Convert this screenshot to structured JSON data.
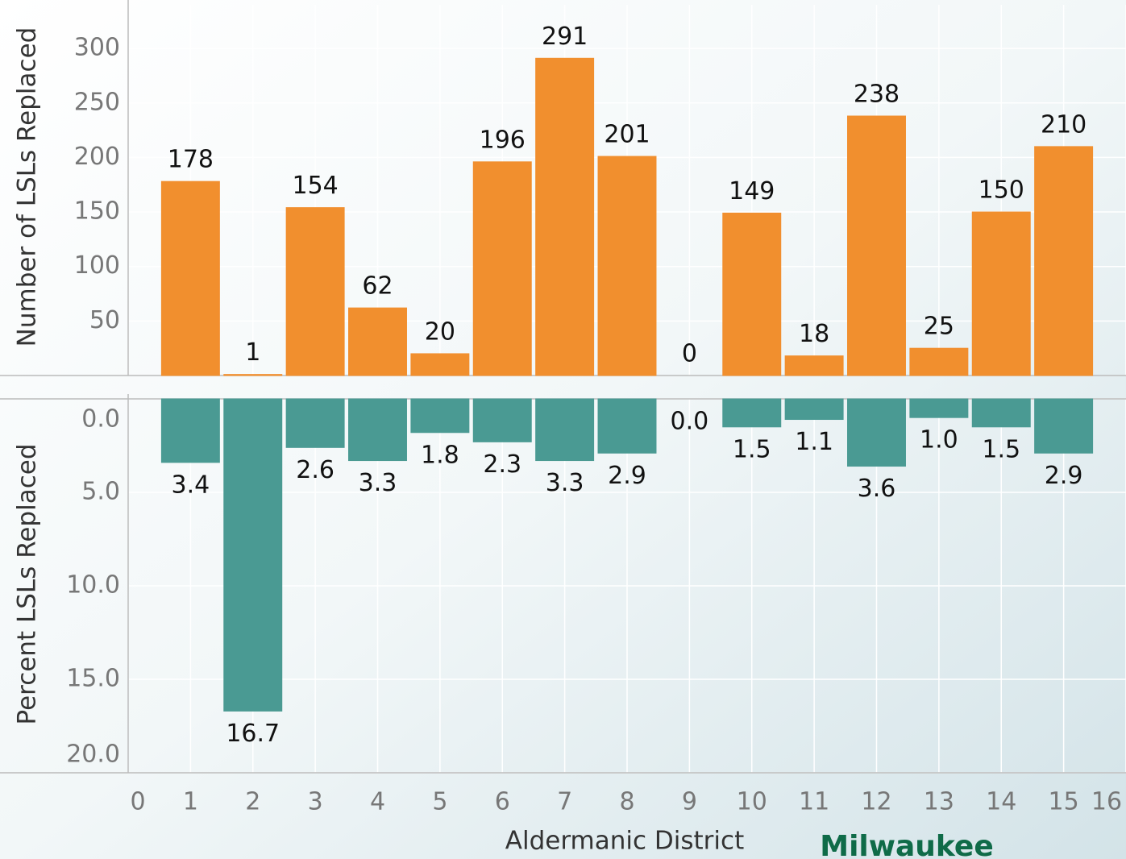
{
  "chart_data": [
    {
      "type": "bar",
      "ylabel": "Number of LSLs Replaced",
      "x": [
        1,
        2,
        3,
        4,
        5,
        6,
        7,
        8,
        9,
        10,
        11,
        12,
        13,
        14,
        15
      ],
      "values": [
        178,
        1,
        154,
        62,
        20,
        196,
        291,
        201,
        0,
        149,
        18,
        238,
        25,
        150,
        210
      ],
      "color": "#f18f2e",
      "ylim": [
        0,
        340
      ],
      "yticks": [
        50,
        100,
        150,
        200,
        250,
        300
      ],
      "grid": true
    },
    {
      "type": "bar",
      "ylabel": "Percent LSLs Replaced",
      "xlabel": "Aldermanic District",
      "x": [
        1,
        2,
        3,
        4,
        5,
        6,
        7,
        8,
        9,
        10,
        11,
        12,
        13,
        14,
        15
      ],
      "values": [
        3.4,
        16.7,
        2.6,
        3.3,
        1.8,
        2.3,
        3.3,
        2.9,
        0.0,
        1.5,
        1.1,
        3.6,
        1.0,
        1.5,
        2.9
      ],
      "value_labels": [
        "3.4",
        "16.7",
        "2.6",
        "3.3",
        "1.8",
        "2.3",
        "3.3",
        "2.9",
        "0.0",
        "1.5",
        "1.1",
        "3.6",
        "1.0",
        "1.5",
        "2.9"
      ],
      "color": "#4a9a93",
      "ylim": [
        0,
        20
      ],
      "y_inverted": true,
      "yticks": [
        {
          "value": 0,
          "label": "0.0"
        },
        {
          "value": 5,
          "label": "5.0"
        },
        {
          "value": 10,
          "label": "10.0"
        },
        {
          "value": 15,
          "label": "15.0"
        },
        {
          "value": 20,
          "label": "20.0"
        }
      ],
      "xlim": [
        0,
        16
      ],
      "xticks": [
        0,
        1,
        2,
        3,
        4,
        5,
        6,
        7,
        8,
        9,
        10,
        11,
        12,
        13,
        14,
        15,
        16
      ],
      "grid": true
    }
  ],
  "logo": "Milwaukee"
}
